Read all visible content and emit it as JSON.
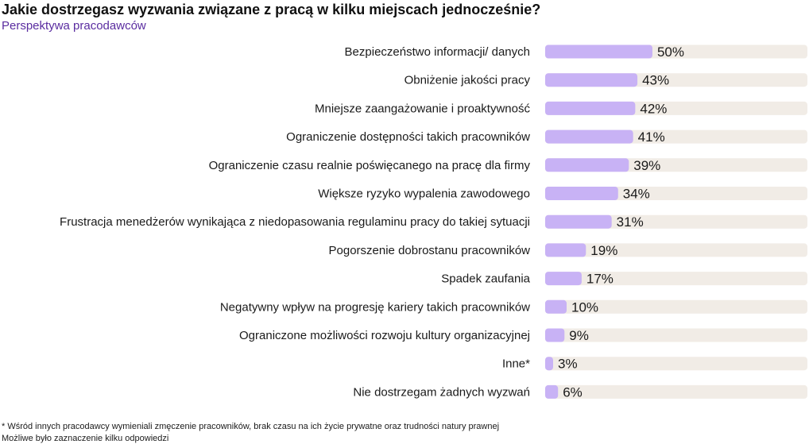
{
  "chart_data": {
    "type": "bar",
    "orientation": "horizontal",
    "title": "Jakie dostrzegasz wyzwania związane z pracą w kilku miejscach jednocześnie?",
    "subtitle": "Perspektywa pracodawców",
    "categories": [
      "Bezpieczeństwo informacji/ danych",
      "Obniżenie jakości pracy",
      "Mniejsze zaangażowanie i proaktywność",
      "Ograniczenie dostępności takich pracowników",
      "Ograniczenie czasu realnie poświęcanego na pracę dla firmy",
      "Większe ryzyko wypalenia zawodowego",
      "Frustracja menedżerów wynikająca z niedopasowania regulaminu pracy do takiej sytuacji",
      "Pogorszenie dobrostanu pracowników",
      "Spadek zaufania",
      "Negatywny wpływ na progresję kariery takich pracowników",
      "Ograniczone możliwości rozwoju kultury organizacyjnej",
      "Inne*",
      "Nie dostrzegam żadnych wyzwań"
    ],
    "values": [
      50,
      43,
      42,
      41,
      39,
      34,
      31,
      19,
      17,
      10,
      9,
      3,
      6
    ],
    "value_suffix": "%",
    "xlim": [
      0,
      100
    ],
    "bar_color": "#c8b2f5",
    "track_color": "#f1ece6"
  },
  "footnotes": [
    "* Wśród innych pracodawcy wymieniali zmęczenie pracowników, brak czasu na ich życie prywatne oraz trudności natury prawnej",
    "Możliwe było zaznaczenie kilku odpowiedzi"
  ]
}
